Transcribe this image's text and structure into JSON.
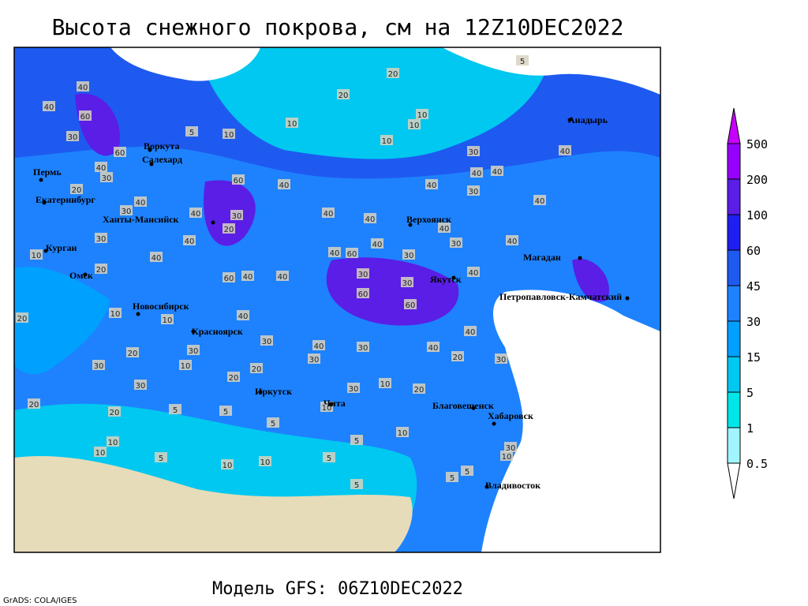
{
  "title": "Высота снежного покрова, см на 12Z10DEC2022",
  "footer": "Модель GFS: 06Z10DEC2022",
  "credit": "GrADS: COLA/IGES",
  "cities": [
    "Пермь",
    "Екатеринбург",
    "Курган",
    "Омск",
    "Новосибирск",
    "Красноярск",
    "Иркутск",
    "Чита",
    "Благовещенск",
    "Хабаровск",
    "Владивосток",
    "Петропавловск-Камчатский",
    "Магадан",
    "Якутск",
    "Верхоянск",
    "Анадырь",
    "Ханты-Мансийск",
    "Салехард",
    "Воркута"
  ],
  "contour_labels": [
    20,
    20,
    5,
    40,
    40,
    60,
    10,
    10,
    10,
    5,
    10,
    10,
    30,
    60,
    40,
    30,
    60,
    40,
    20,
    40,
    40,
    40,
    40,
    30,
    40,
    30,
    40,
    40,
    40,
    40,
    30,
    20,
    30,
    30,
    40,
    40,
    40,
    40,
    40,
    60,
    40,
    30,
    30,
    10,
    20,
    60,
    40,
    40,
    30,
    60,
    30,
    60,
    40,
    20,
    10,
    10,
    40,
    30,
    30,
    40,
    30,
    40,
    10,
    30,
    20,
    20,
    30,
    20,
    30,
    10,
    20,
    30,
    20,
    20,
    5,
    5,
    10,
    5,
    10,
    5,
    10,
    10,
    5,
    10,
    10,
    5,
    5,
    5,
    10,
    30,
    20,
    40,
    5,
    30
  ],
  "colorbar": {
    "levels": [
      0.5,
      1,
      5,
      15,
      30,
      45,
      60,
      100,
      200,
      500
    ],
    "colors": [
      "#ffffff",
      "#a0f5ff",
      "#00e6e6",
      "#00c8f0",
      "#00a0ff",
      "#1e82ff",
      "#1e5af0",
      "#1e1ef0",
      "#5a1ee6",
      "#9600ff",
      "#c800ff"
    ]
  }
}
